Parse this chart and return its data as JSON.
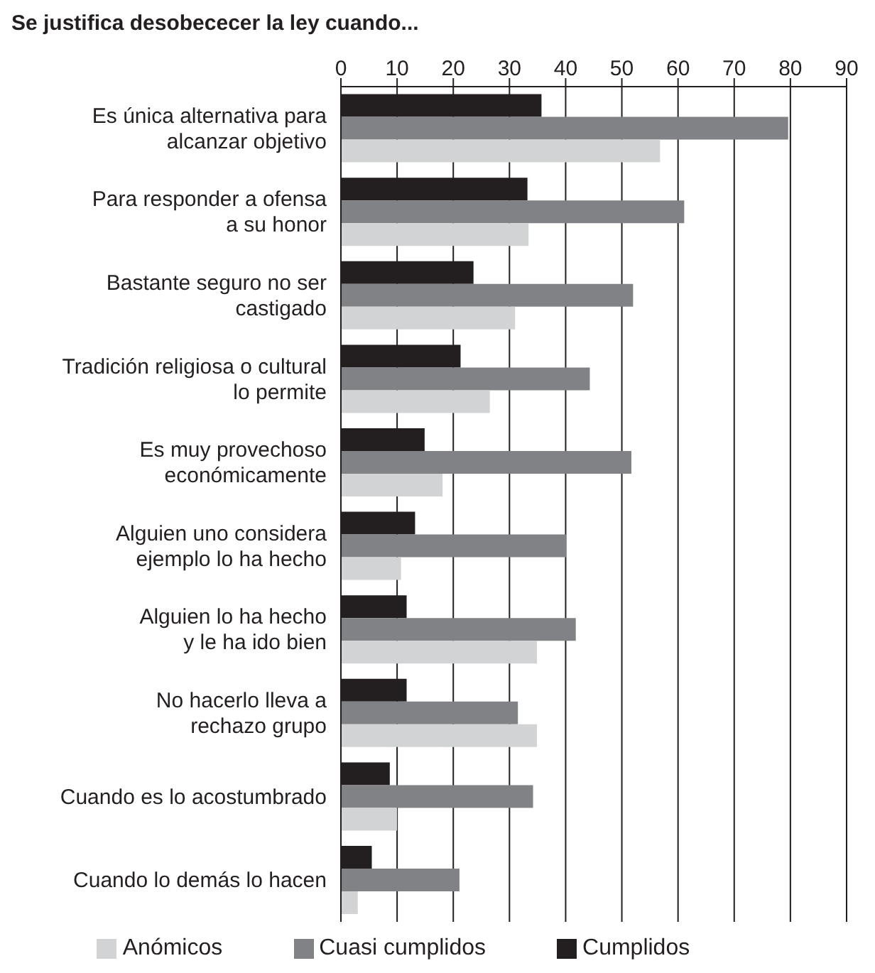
{
  "chart_data": {
    "type": "bar",
    "orientation": "horizontal",
    "title": "Se justifica desobececer la ley cuando...",
    "categories": [
      "Es única alternativa para\nalcanzar objetivo",
      "Para responder a ofensa\na su honor",
      "Bastante seguro no ser\ncastigado",
      "Tradición religiosa o cultural\nlo permite",
      "Es muy provechoso\neconómicamente",
      "Alguien uno considera\nejemplo lo ha hecho",
      "Alguien lo ha hecho\ny le ha ido bien",
      "No hacerlo lleva a\nrechazo grupo",
      "Cuando es lo acostumbrado",
      "Cuando lo demás lo hacen"
    ],
    "series": [
      {
        "name": "Cumplidos",
        "color": "#231f20",
        "values": [
          35.7,
          33.2,
          23.6,
          21.3,
          14.9,
          13.2,
          11.7,
          11.7,
          8.7,
          5.5
        ]
      },
      {
        "name": "Cuasi cumplidos",
        "color": "#808285",
        "values": [
          79.6,
          61.1,
          52.0,
          44.3,
          51.7,
          40.1,
          41.8,
          31.5,
          34.2,
          21.1
        ]
      },
      {
        "name": "Anómicos",
        "color": "#d1d3d4",
        "values": [
          56.8,
          33.4,
          31.0,
          26.5,
          18.1,
          10.7,
          34.9,
          34.9,
          10.0,
          3.0
        ]
      }
    ],
    "xlim": [
      0,
      90
    ],
    "xticks": [
      0,
      10,
      20,
      30,
      40,
      50,
      60,
      70,
      80,
      90
    ],
    "grid": "x",
    "legend": "bottom"
  }
}
